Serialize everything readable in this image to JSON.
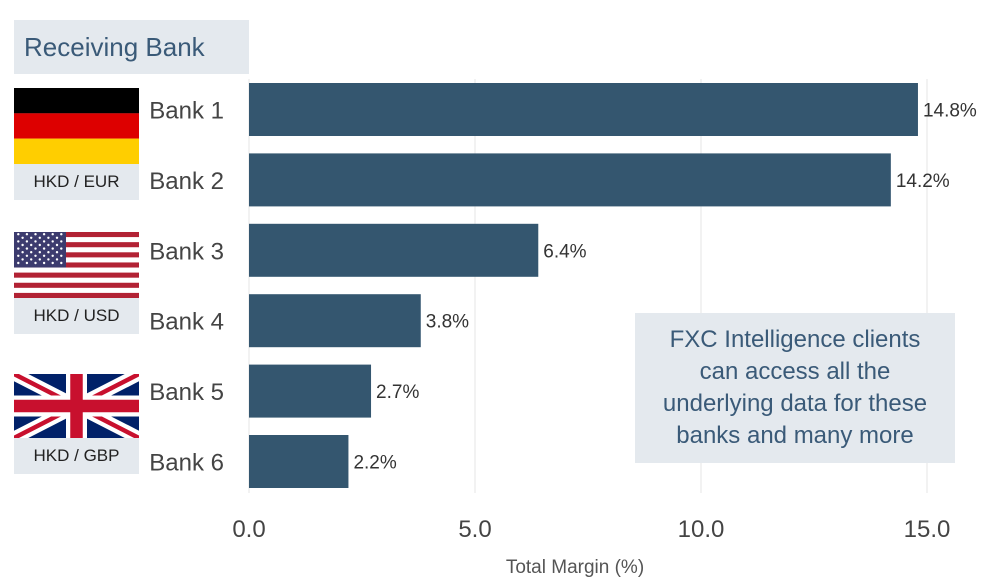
{
  "header": {
    "title": "Receiving Bank"
  },
  "flags": [
    {
      "label": "HKD / EUR",
      "icon": "germany-flag-icon"
    },
    {
      "label": "HKD / USD",
      "icon": "usa-flag-icon"
    },
    {
      "label": "HKD / GBP",
      "icon": "uk-flag-icon"
    }
  ],
  "callout": {
    "text": "FXC Intelligence clients can access all the underlying data for these banks and many more"
  },
  "colors": {
    "bar": "#34566f",
    "panel": "#e4e9ee",
    "accent_text": "#3a5a78"
  },
  "chart_data": {
    "type": "bar",
    "orientation": "horizontal",
    "categories": [
      "Bank 1",
      "Bank 2",
      "Bank 3",
      "Bank 4",
      "Bank 5",
      "Bank 6"
    ],
    "values": [
      14.8,
      14.2,
      6.4,
      3.8,
      2.7,
      2.2
    ],
    "value_labels": [
      "14.8%",
      "14.2%",
      "6.4%",
      "3.8%",
      "2.7%",
      "2.2%"
    ],
    "xlabel": "Total Margin (%)",
    "xlim": [
      0,
      15
    ],
    "xticks": [
      0,
      5,
      10,
      15
    ],
    "xtick_labels": [
      "0.0",
      "5.0",
      "10.0",
      "15.0"
    ],
    "grid": true
  }
}
